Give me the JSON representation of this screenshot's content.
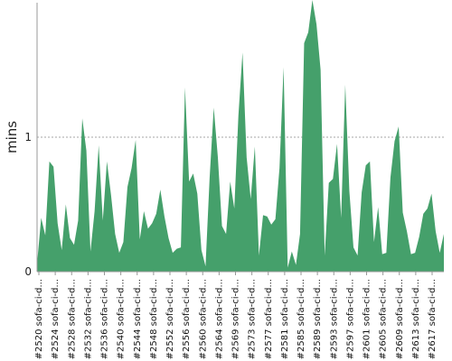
{
  "chart_data": {
    "type": "area",
    "ylabel": "mins",
    "ylim": [
      0,
      2
    ],
    "yticks": [
      0,
      1
    ],
    "grid": "horizontal-dashed-at-ticks",
    "colors": {
      "fill": "#45a06b",
      "axis": "#999999",
      "grid": "#888888"
    },
    "x_tick_labels": [
      "#2520 sofa-ci-d...",
      "#2524 sofa-ci-d...",
      "#2528 sofa-ci-d...",
      "#2532 sofa-ci-d...",
      "#2536 sofa-ci-d...",
      "#2540 sofa-ci-d...",
      "#2544 sofa-ci-d...",
      "#2548 sofa-ci-d...",
      "#2552 sofa-ci-d...",
      "#2556 sofa-ci-d...",
      "#2560 sofa-ci-d...",
      "#2564 sofa-ci-d...",
      "#2569 sofa-ci-d...",
      "#2573 sofa-ci-d...",
      "#2577 sofa-ci-d...",
      "#2581 sofa-ci-d...",
      "#2585 sofa-ci-d...",
      "#2589 sofa-ci-d...",
      "#2593 sofa-ci-d...",
      "#2597 sofa-ci-d...",
      "#2601 sofa-ci-d...",
      "#2605 sofa-ci-d...",
      "#2609 sofa-ci-d...",
      "#2613 sofa-ci-d...",
      "#2617 sofa-ci-d..."
    ],
    "values": [
      0.06,
      0.4,
      0.27,
      0.82,
      0.78,
      0.36,
      0.16,
      0.5,
      0.25,
      0.2,
      0.38,
      1.14,
      0.9,
      0.15,
      0.45,
      0.94,
      0.38,
      0.82,
      0.57,
      0.28,
      0.14,
      0.22,
      0.63,
      0.77,
      0.98,
      0.24,
      0.45,
      0.32,
      0.36,
      0.43,
      0.61,
      0.41,
      0.25,
      0.14,
      0.17,
      0.18,
      1.37,
      0.67,
      0.73,
      0.58,
      0.16,
      0.04,
      0.7,
      1.22,
      0.85,
      0.34,
      0.28,
      0.67,
      0.47,
      1.16,
      1.63,
      0.85,
      0.54,
      0.93,
      0.12,
      0.42,
      0.41,
      0.35,
      0.39,
      0.77,
      1.52,
      0.03,
      0.15,
      0.05,
      0.28,
      1.7,
      1.78,
      2.02,
      1.84,
      1.5,
      0.12,
      0.66,
      0.69,
      0.95,
      0.4,
      1.39,
      0.6,
      0.18,
      0.12,
      0.59,
      0.79,
      0.82,
      0.22,
      0.48,
      0.13,
      0.14,
      0.7,
      0.97,
      1.08,
      0.44,
      0.3,
      0.13,
      0.14,
      0.26,
      0.43,
      0.47,
      0.58,
      0.3,
      0.14,
      0.28
    ]
  }
}
